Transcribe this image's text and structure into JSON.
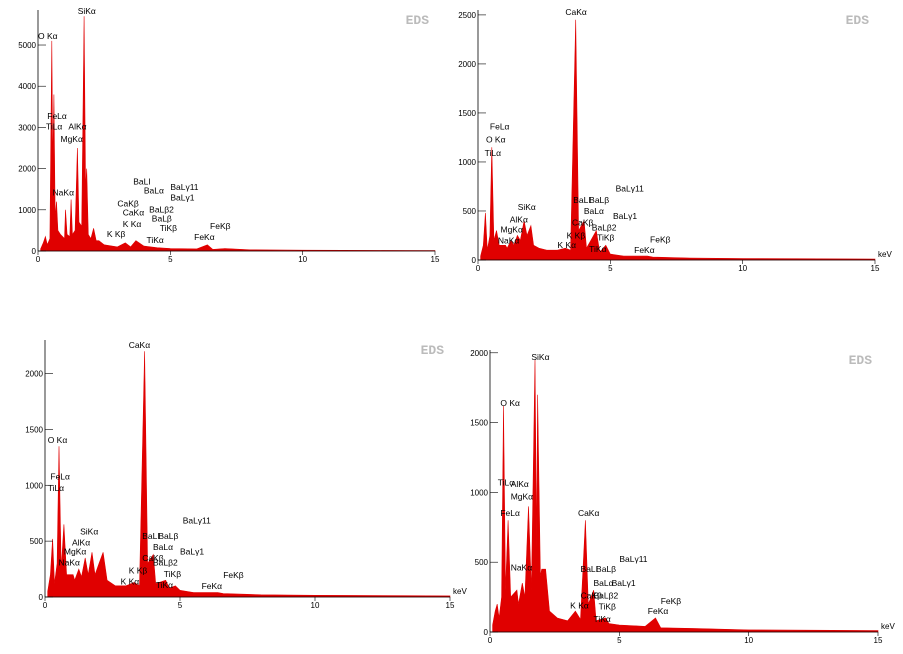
{
  "chart_data": [
    {
      "type": "area",
      "watermark": "EDS",
      "color": "#e00000",
      "xlim": [
        0,
        15
      ],
      "xticks": [
        0,
        5,
        10,
        15
      ],
      "ylim": [
        0,
        5850
      ],
      "yticks": [
        0,
        1000,
        2000,
        3000,
        4000,
        5000
      ],
      "x": [
        0.1,
        0.2,
        0.28,
        0.35,
        0.45,
        0.52,
        0.56,
        0.6,
        0.65,
        0.7,
        0.75,
        0.85,
        1.0,
        1.04,
        1.1,
        1.2,
        1.25,
        1.3,
        1.4,
        1.49,
        1.55,
        1.65,
        1.74,
        1.8,
        1.84,
        1.9,
        2.0,
        2.1,
        2.2,
        2.3,
        2.5,
        3.0,
        3.3,
        3.5,
        3.7,
        4.0,
        4.5,
        5.0,
        6.0,
        6.4,
        6.6,
        7.06,
        8,
        10,
        15
      ],
      "values": [
        50,
        200,
        350,
        150,
        300,
        5100,
        2000,
        3800,
        800,
        1200,
        500,
        400,
        300,
        1000,
        400,
        350,
        1250,
        400,
        500,
        2500,
        700,
        600,
        5700,
        1500,
        2000,
        400,
        300,
        550,
        250,
        250,
        150,
        100,
        200,
        100,
        250,
        120,
        80,
        60,
        50,
        150,
        40,
        60,
        30,
        20,
        10
      ],
      "annotations": [
        {
          "text": "SiKα",
          "x": 1.5,
          "y": 5750
        },
        {
          "text": "O Kα",
          "x": 0.0,
          "y": 5150
        },
        {
          "text": "FeLα",
          "x": 0.35,
          "y": 3200
        },
        {
          "text": "TiLα",
          "x": 0.3,
          "y": 2950
        },
        {
          "text": "AlKα",
          "x": 1.15,
          "y": 2950
        },
        {
          "text": "MgKα",
          "x": 0.85,
          "y": 2650
        },
        {
          "text": "NaKα",
          "x": 0.55,
          "y": 1350
        },
        {
          "text": "BaLI",
          "x": 3.6,
          "y": 1620
        },
        {
          "text": "BaLα",
          "x": 4.0,
          "y": 1400
        },
        {
          "text": "BaLγ11",
          "x": 5.0,
          "y": 1480
        },
        {
          "text": "BaLγ1",
          "x": 5.0,
          "y": 1230
        },
        {
          "text": "CaKβ",
          "x": 3.0,
          "y": 1080
        },
        {
          "text": "BaLβ2",
          "x": 4.2,
          "y": 940
        },
        {
          "text": "CaKα",
          "x": 3.2,
          "y": 860
        },
        {
          "text": "BaLβ",
          "x": 4.3,
          "y": 720
        },
        {
          "text": "K Kα",
          "x": 3.2,
          "y": 580
        },
        {
          "text": "TiKβ",
          "x": 4.6,
          "y": 480
        },
        {
          "text": "K Kβ",
          "x": 2.6,
          "y": 340
        },
        {
          "text": "TiKα",
          "x": 4.1,
          "y": 200
        },
        {
          "text": "FeKα",
          "x": 5.9,
          "y": 270
        },
        {
          "text": "FeKβ",
          "x": 6.5,
          "y": 540
        }
      ]
    },
    {
      "type": "area",
      "watermark": "EDS",
      "color": "#e00000",
      "xlabel": "keV",
      "xlim": [
        0,
        15
      ],
      "xticks": [
        0,
        5,
        10,
        15
      ],
      "ylim": [
        0,
        2550
      ],
      "yticks": [
        0,
        500,
        1000,
        1500,
        2000,
        2500
      ],
      "x": [
        0.1,
        0.2,
        0.28,
        0.35,
        0.45,
        0.52,
        0.6,
        0.7,
        0.8,
        1.04,
        1.1,
        1.25,
        1.35,
        1.49,
        1.6,
        1.74,
        1.85,
        2.0,
        2.1,
        2.3,
        2.6,
        3.0,
        3.3,
        3.5,
        3.69,
        3.8,
        4.01,
        4.1,
        4.47,
        4.6,
        4.83,
        5.0,
        5.5,
        6.4,
        6.6,
        8,
        10,
        15
      ],
      "values": [
        40,
        150,
        480,
        100,
        250,
        1150,
        200,
        300,
        150,
        150,
        120,
        200,
        150,
        250,
        200,
        400,
        250,
        350,
        150,
        120,
        100,
        100,
        120,
        100,
        2450,
        300,
        400,
        120,
        300,
        80,
        150,
        60,
        40,
        40,
        30,
        20,
        15,
        10
      ],
      "annotations": [
        {
          "text": "CaKα",
          "x": 3.3,
          "y": 2500
        },
        {
          "text": "FeLα",
          "x": 0.45,
          "y": 1330
        },
        {
          "text": "O Kα",
          "x": 0.3,
          "y": 1200
        },
        {
          "text": "TiLα",
          "x": 0.25,
          "y": 1060
        },
        {
          "text": "BaLγ11",
          "x": 5.2,
          "y": 700
        },
        {
          "text": "BaLI",
          "x": 3.6,
          "y": 580
        },
        {
          "text": "BaLβ",
          "x": 4.2,
          "y": 580
        },
        {
          "text": "SiKα",
          "x": 1.5,
          "y": 510
        },
        {
          "text": "BaLα",
          "x": 4.0,
          "y": 470
        },
        {
          "text": "BaLγ1",
          "x": 5.1,
          "y": 420
        },
        {
          "text": "AlKα",
          "x": 1.2,
          "y": 380
        },
        {
          "text": "CaKβ",
          "x": 3.55,
          "y": 350
        },
        {
          "text": "BaLβ2",
          "x": 4.3,
          "y": 300
        },
        {
          "text": "MgKα",
          "x": 0.85,
          "y": 280
        },
        {
          "text": "K Kβ",
          "x": 3.35,
          "y": 220
        },
        {
          "text": "TiKβ",
          "x": 4.5,
          "y": 200
        },
        {
          "text": "FeKβ",
          "x": 6.5,
          "y": 180
        },
        {
          "text": "NaKα",
          "x": 0.75,
          "y": 170
        },
        {
          "text": "K Kα",
          "x": 3.0,
          "y": 120
        },
        {
          "text": "TiKα",
          "x": 4.2,
          "y": 80
        },
        {
          "text": "FeKα",
          "x": 5.9,
          "y": 70
        }
      ]
    },
    {
      "type": "area",
      "watermark": "EDS",
      "color": "#e00000",
      "xlabel": "keV",
      "xlim": [
        0,
        15
      ],
      "xticks": [
        0,
        5,
        10,
        15
      ],
      "ylim": [
        0,
        2300
      ],
      "yticks": [
        0,
        500,
        1000,
        1500,
        2000
      ],
      "x": [
        0.1,
        0.2,
        0.28,
        0.35,
        0.45,
        0.52,
        0.6,
        0.7,
        0.8,
        1.04,
        1.1,
        1.25,
        1.35,
        1.49,
        1.6,
        1.74,
        1.85,
        2.0,
        2.15,
        2.3,
        2.6,
        3.0,
        3.3,
        3.5,
        3.69,
        3.8,
        4.01,
        4.1,
        4.47,
        4.6,
        4.83,
        5.0,
        5.5,
        6.4,
        6.6,
        8,
        10,
        15
      ],
      "values": [
        50,
        200,
        520,
        120,
        300,
        1350,
        250,
        650,
        200,
        200,
        150,
        250,
        180,
        350,
        200,
        400,
        200,
        300,
        400,
        150,
        100,
        100,
        130,
        100,
        2200,
        300,
        380,
        120,
        150,
        80,
        100,
        60,
        40,
        40,
        30,
        20,
        15,
        10
      ],
      "annotations": [
        {
          "text": "CaKα",
          "x": 3.1,
          "y": 2230
        },
        {
          "text": "O Kα",
          "x": 0.1,
          "y": 1380
        },
        {
          "text": "FeLα",
          "x": 0.2,
          "y": 1050
        },
        {
          "text": "TiLα",
          "x": 0.1,
          "y": 950
        },
        {
          "text": "BaLγ11",
          "x": 5.1,
          "y": 660
        },
        {
          "text": "SiKα",
          "x": 1.3,
          "y": 560
        },
        {
          "text": "BaLI",
          "x": 3.6,
          "y": 520
        },
        {
          "text": "BaLβ",
          "x": 4.2,
          "y": 520
        },
        {
          "text": "AlKα",
          "x": 1.0,
          "y": 460
        },
        {
          "text": "BaLα",
          "x": 4.0,
          "y": 420
        },
        {
          "text": "MgKα",
          "x": 0.7,
          "y": 380
        },
        {
          "text": "BaLγ1",
          "x": 5.0,
          "y": 380
        },
        {
          "text": "CaKβ",
          "x": 3.6,
          "y": 320
        },
        {
          "text": "NaKα",
          "x": 0.5,
          "y": 280
        },
        {
          "text": "BaLβ2",
          "x": 4.0,
          "y": 280
        },
        {
          "text": "K Kβ",
          "x": 3.1,
          "y": 210
        },
        {
          "text": "TiKβ",
          "x": 4.4,
          "y": 180
        },
        {
          "text": "FeKβ",
          "x": 6.6,
          "y": 170
        },
        {
          "text": "K Kα",
          "x": 2.8,
          "y": 110
        },
        {
          "text": "TiKα",
          "x": 4.1,
          "y": 80
        },
        {
          "text": "FeKα",
          "x": 5.8,
          "y": 70
        }
      ]
    },
    {
      "type": "area",
      "watermark": "EDS",
      "color": "#e00000",
      "xlabel": "keV",
      "xlim": [
        0,
        15
      ],
      "xticks": [
        0,
        5,
        10,
        15
      ],
      "ylim": [
        0,
        2020
      ],
      "yticks": [
        0,
        500,
        1000,
        1500,
        2000
      ],
      "x": [
        0.1,
        0.2,
        0.28,
        0.35,
        0.45,
        0.52,
        0.6,
        0.7,
        0.8,
        1.04,
        1.1,
        1.25,
        1.35,
        1.49,
        1.6,
        1.74,
        1.8,
        1.84,
        1.95,
        2.0,
        2.15,
        2.3,
        2.6,
        3.0,
        3.3,
        3.5,
        3.69,
        3.8,
        4.01,
        4.1,
        4.47,
        4.6,
        5.0,
        6.0,
        6.4,
        6.6,
        8,
        10,
        15
      ],
      "values": [
        50,
        150,
        200,
        100,
        250,
        1620,
        300,
        800,
        250,
        300,
        200,
        350,
        250,
        900,
        300,
        1950,
        600,
        1700,
        400,
        450,
        450,
        150,
        100,
        80,
        150,
        90,
        800,
        200,
        300,
        80,
        100,
        60,
        50,
        40,
        100,
        30,
        25,
        15,
        10
      ],
      "annotations": [
        {
          "text": "SiKα",
          "x": 1.6,
          "y": 1950
        },
        {
          "text": "O Kα",
          "x": 0.4,
          "y": 1620
        },
        {
          "text": "TiLα",
          "x": 0.3,
          "y": 1050
        },
        {
          "text": "AlKα",
          "x": 0.8,
          "y": 1040
        },
        {
          "text": "MgKα",
          "x": 0.8,
          "y": 950
        },
        {
          "text": "FeLα",
          "x": 0.4,
          "y": 830
        },
        {
          "text": "CaKα",
          "x": 3.4,
          "y": 830
        },
        {
          "text": "BaLγ11",
          "x": 5.0,
          "y": 500
        },
        {
          "text": "NaKα",
          "x": 0.8,
          "y": 440
        },
        {
          "text": "BaLI",
          "x": 3.5,
          "y": 430
        },
        {
          "text": "BaLβ",
          "x": 4.1,
          "y": 430
        },
        {
          "text": "BaLα",
          "x": 4.0,
          "y": 330
        },
        {
          "text": "BaLγ1",
          "x": 4.7,
          "y": 330
        },
        {
          "text": "CaKβ",
          "x": 3.5,
          "y": 240
        },
        {
          "text": "BaLβ2",
          "x": 4.0,
          "y": 240
        },
        {
          "text": "FeKβ",
          "x": 6.6,
          "y": 200
        },
        {
          "text": "K Kα",
          "x": 3.1,
          "y": 170
        },
        {
          "text": "TiKβ",
          "x": 4.2,
          "y": 160
        },
        {
          "text": "FeKα",
          "x": 6.1,
          "y": 130
        },
        {
          "text": "TiKα",
          "x": 4.0,
          "y": 70
        }
      ]
    }
  ]
}
